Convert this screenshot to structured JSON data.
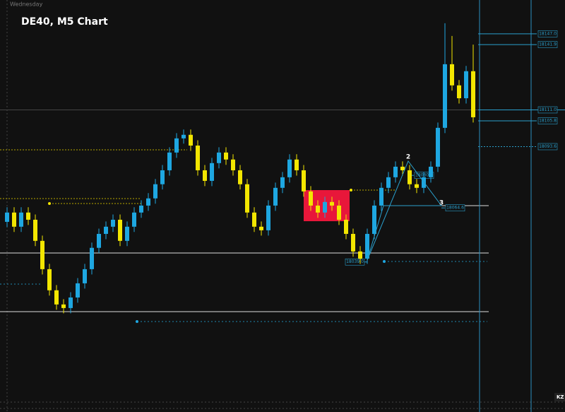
{
  "chart_data": {
    "type": "candlestick",
    "title": "DE40, M5 Chart",
    "day_label": "Wednesday",
    "corner_label": "KZ",
    "up_color": "#1ea7e1",
    "down_color": "#f3e600",
    "ylim": [
      17968,
      18163
    ],
    "levels": [
      {
        "value": 18147,
        "label": "18147.0"
      },
      {
        "value": 18141.9,
        "label": "18141.9"
      },
      {
        "value": 18111,
        "label": "18111.0"
      },
      {
        "value": 18105.8,
        "label": "18105.8"
      },
      {
        "value": 18093.6,
        "label": "18093.6"
      },
      {
        "value": 18080,
        "label": "18080.0"
      },
      {
        "value": 18064.6,
        "label": "18064.6"
      },
      {
        "value": 18039,
        "label": "18039.0"
      }
    ],
    "annotations": [
      "2",
      "3"
    ],
    "candles": [
      [
        18058.0,
        18064.9,
        18055.5,
        18062.4
      ],
      [
        18062.4,
        18064.9,
        18053.2,
        18055.7
      ],
      [
        18055.7,
        18064.9,
        18053.2,
        18062.4
      ],
      [
        18062.4,
        18064.9,
        18056.5,
        18059.0
      ],
      [
        18059.0,
        18061.5,
        18046.5,
        18049.0
      ],
      [
        18049.0,
        18051.5,
        18033.1,
        18035.6
      ],
      [
        18035.6,
        18038.1,
        18023.1,
        18025.6
      ],
      [
        18025.6,
        18028.1,
        18016.4,
        18018.9
      ],
      [
        18018.9,
        18021.4,
        18014.7,
        18017.2
      ],
      [
        18017.2,
        18024.7,
        18014.7,
        18022.2
      ],
      [
        18022.2,
        18031.4,
        18019.7,
        18028.9
      ],
      [
        18028.9,
        18038.1,
        18026.4,
        18035.6
      ],
      [
        18035.6,
        18048.2,
        18033.1,
        18045.7
      ],
      [
        18045.7,
        18054.8,
        18043.2,
        18052.3
      ],
      [
        18052.3,
        18058.2,
        18049.8,
        18055.7
      ],
      [
        18055.7,
        18061.5,
        18053.2,
        18059.0
      ],
      [
        18059.0,
        18061.5,
        18046.5,
        18049.0
      ],
      [
        18049.0,
        18058.2,
        18046.5,
        18055.7
      ],
      [
        18055.7,
        18064.9,
        18053.2,
        18062.4
      ],
      [
        18062.4,
        18068.2,
        18059.9,
        18065.7
      ],
      [
        18065.7,
        18071.6,
        18063.2,
        18069.1
      ],
      [
        18069.1,
        18078.3,
        18066.6,
        18075.8
      ],
      [
        18075.8,
        18084.9,
        18073.3,
        18082.4
      ],
      [
        18082.4,
        18093.3,
        18079.9,
        18090.8
      ],
      [
        18090.8,
        18100.0,
        18088.3,
        18097.5
      ],
      [
        18097.5,
        18101.7,
        18095.0,
        18099.2
      ],
      [
        18099.2,
        18101.7,
        18091.6,
        18094.1
      ],
      [
        18094.1,
        18096.6,
        18079.9,
        18082.4
      ],
      [
        18082.4,
        18084.9,
        18074.9,
        18077.4
      ],
      [
        18077.4,
        18088.3,
        18074.9,
        18085.8
      ],
      [
        18085.8,
        18093.3,
        18083.3,
        18090.8
      ],
      [
        18090.8,
        18093.3,
        18085.0,
        18087.5
      ],
      [
        18087.5,
        18090.0,
        18079.9,
        18082.4
      ],
      [
        18082.4,
        18084.9,
        18073.3,
        18075.8
      ],
      [
        18075.8,
        18078.3,
        18059.9,
        18062.4
      ],
      [
        18062.4,
        18064.9,
        18053.2,
        18055.7
      ],
      [
        18055.7,
        18058.2,
        18051.5,
        18054.0
      ],
      [
        18054.0,
        18068.2,
        18051.5,
        18065.7
      ],
      [
        18065.7,
        18076.6,
        18063.2,
        18074.1
      ],
      [
        18074.1,
        18081.6,
        18071.6,
        18079.1
      ],
      [
        18079.1,
        18090.0,
        18076.6,
        18087.5
      ],
      [
        18087.5,
        18090.0,
        18079.9,
        18082.4
      ],
      [
        18082.4,
        18084.9,
        18069.9,
        18072.4
      ],
      [
        18072.4,
        18074.9,
        18063.2,
        18065.7
      ],
      [
        18065.7,
        18068.2,
        18059.9,
        18062.4
      ],
      [
        18062.4,
        18069.9,
        18059.9,
        18067.4
      ],
      [
        18067.4,
        18069.9,
        18063.2,
        18065.7
      ],
      [
        18065.7,
        18068.2,
        18056.5,
        18059.0
      ],
      [
        18059.0,
        18061.5,
        18049.8,
        18052.3
      ],
      [
        18052.3,
        18054.8,
        18041.5,
        18044.0
      ],
      [
        18044.0,
        18046.5,
        18038.1,
        18040.6
      ],
      [
        18040.6,
        18054.8,
        18038.1,
        18052.3
      ],
      [
        18052.3,
        18068.2,
        18049.8,
        18065.7
      ],
      [
        18065.7,
        18076.6,
        18063.2,
        18074.1
      ],
      [
        18074.1,
        18081.6,
        18071.6,
        18079.1
      ],
      [
        18079.1,
        18086.6,
        18076.6,
        18084.1
      ],
      [
        18084.1,
        18086.6,
        18079.9,
        18082.4
      ],
      [
        18082.4,
        18084.9,
        18073.3,
        18075.8
      ],
      [
        18075.8,
        18078.3,
        18071.6,
        18074.1
      ],
      [
        18074.1,
        18081.6,
        18071.6,
        18079.1
      ],
      [
        18079.1,
        18086.6,
        18076.6,
        18084.1
      ],
      [
        18084.1,
        18105.0,
        18081.6,
        18102.5
      ],
      [
        18102.5,
        18152.0,
        18100.0,
        18132.6
      ],
      [
        18132.6,
        18146.0,
        18120.1,
        18122.6
      ],
      [
        18122.6,
        18125.1,
        18114.0,
        18116.5
      ],
      [
        18116.5,
        18131.8,
        18114.0,
        18129.3
      ],
      [
        18129.3,
        18141.9,
        18105.0,
        18107.5
      ]
    ]
  }
}
